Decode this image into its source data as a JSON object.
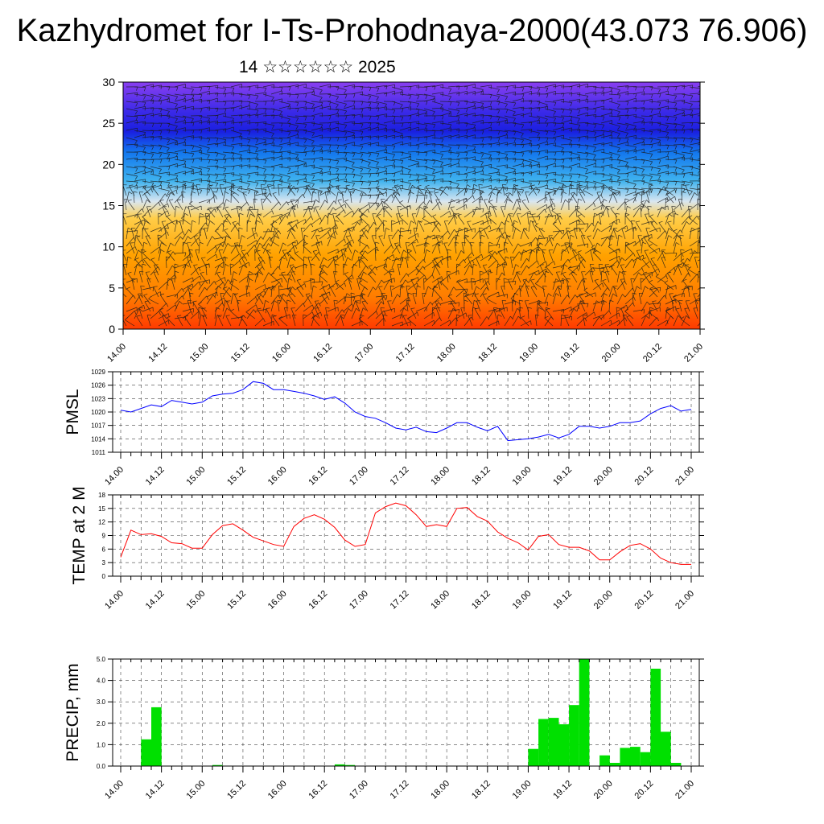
{
  "header": {
    "title": "Kazhydromet for I-Ts-Prohodnaya-2000(43.073 76.906)",
    "subtitle": "14 ☆☆☆☆☆☆ 2025"
  },
  "time_ticks": [
    "14.00",
    "14.12",
    "15.00",
    "15.12",
    "16.00",
    "16.12",
    "17.00",
    "17.12",
    "18.00",
    "18.12",
    "19.00",
    "19.12",
    "20.00",
    "20.12",
    "21.00"
  ],
  "chart_data": [
    {
      "type": "heatmap",
      "title": "",
      "xlabel": "",
      "ylabel": "",
      "ylim": [
        0,
        30
      ],
      "y_ticks": [
        0,
        5,
        10,
        15,
        20,
        25,
        30
      ],
      "levels": [
        {
          "y": 0,
          "color": "#ff3a00"
        },
        {
          "y": 4,
          "color": "#ff7d00"
        },
        {
          "y": 9,
          "color": "#ffa200"
        },
        {
          "y": 13.5,
          "color": "#ffce4a"
        },
        {
          "y": 15.5,
          "color": "#d9e6f0"
        },
        {
          "y": 18,
          "color": "#3fb3ef"
        },
        {
          "y": 21.5,
          "color": "#1276ee"
        },
        {
          "y": 24,
          "color": "#1a1fe0"
        },
        {
          "y": 26.5,
          "color": "#3c2ae8"
        },
        {
          "y": 30,
          "color": "#8a3ff0"
        }
      ],
      "overlay": "wind barbs"
    },
    {
      "type": "line",
      "ylabel": "PMSL",
      "ylim": [
        1011,
        1029
      ],
      "y_ticks": [
        1011,
        1014,
        1017,
        1020,
        1023,
        1026,
        1029
      ],
      "color": "#0000ff",
      "step_hours": 3,
      "values": [
        1020.4,
        1020.0,
        1020.8,
        1021.6,
        1021.2,
        1022.6,
        1022.2,
        1021.8,
        1022.2,
        1023.6,
        1024.0,
        1024.2,
        1025.0,
        1026.8,
        1026.4,
        1025.0,
        1025.0,
        1024.6,
        1024.2,
        1023.6,
        1022.8,
        1023.4,
        1022.0,
        1020.0,
        1019.0,
        1018.6,
        1017.6,
        1016.4,
        1016.0,
        1016.6,
        1015.6,
        1015.4,
        1016.4,
        1017.6,
        1017.6,
        1016.6,
        1015.8,
        1016.8,
        1013.6,
        1013.8,
        1014.0,
        1014.4,
        1015.0,
        1014.2,
        1015.0,
        1016.8,
        1016.8,
        1016.4,
        1016.8,
        1017.6,
        1017.6,
        1018.0,
        1019.6,
        1020.8,
        1021.4,
        1020.2,
        1020.6
      ]
    },
    {
      "type": "line",
      "ylabel": "TEMP at 2 M",
      "ylim": [
        0,
        18
      ],
      "y_ticks": [
        0,
        3,
        6,
        9,
        12,
        15,
        18
      ],
      "color": "#ff0000",
      "step_hours": 3,
      "values": [
        4.2,
        10.2,
        9.2,
        9.4,
        8.8,
        7.4,
        7.2,
        6.2,
        6.2,
        9.2,
        11.2,
        11.6,
        10.2,
        8.6,
        7.8,
        7.0,
        6.6,
        11.0,
        12.8,
        13.6,
        12.6,
        10.8,
        8.0,
        6.6,
        7.0,
        14.0,
        15.4,
        16.2,
        15.6,
        13.6,
        11.0,
        11.4,
        11.0,
        15.0,
        15.2,
        13.2,
        12.2,
        9.8,
        8.4,
        7.4,
        5.8,
        8.8,
        9.2,
        7.0,
        6.4,
        6.4,
        5.6,
        3.6,
        3.6,
        5.4,
        6.8,
        7.2,
        6.0,
        4.0,
        3.0,
        2.6,
        2.6
      ]
    },
    {
      "type": "bar",
      "ylabel": "PRECIP, mm",
      "ylim": [
        0,
        5
      ],
      "y_ticks": [
        "0.0",
        "1.0",
        "2.0",
        "3.0",
        "4.0",
        "5.0"
      ],
      "color": "#00e000",
      "step_hours": 3,
      "values": [
        0,
        0,
        1.25,
        2.75,
        0,
        0,
        0,
        0,
        0,
        0.05,
        0,
        0,
        0,
        0,
        0,
        0,
        0,
        0,
        0,
        0,
        0.02,
        0.08,
        0.05,
        0,
        0,
        0,
        0,
        0,
        0,
        0,
        0,
        0,
        0,
        0,
        0,
        0,
        0,
        0,
        0,
        0.02,
        0.8,
        2.2,
        2.25,
        1.95,
        2.85,
        5.0,
        0,
        0.5,
        0.15,
        0.85,
        0.9,
        0.65,
        4.55,
        1.6,
        0.15,
        0,
        0
      ]
    }
  ]
}
